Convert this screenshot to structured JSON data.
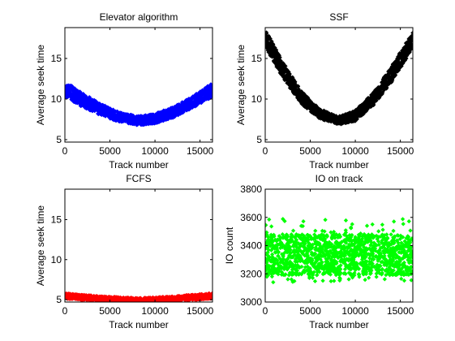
{
  "chart_data": [
    {
      "type": "scatter",
      "title": "Elevator algorithm",
      "xlabel": "Track number",
      "ylabel": "Average seek time",
      "xlim": [
        0,
        16384
      ],
      "ylim": [
        4.7,
        18.8
      ],
      "xticks": [
        0,
        5000,
        10000,
        15000
      ],
      "yticks": [
        5,
        10,
        15
      ],
      "marker": "diamond",
      "color": "#0000ff",
      "grid": false,
      "series": [
        {
          "band_x": [
            0,
            2000,
            4000,
            6000,
            8000,
            8400,
            10000,
            12000,
            14000,
            16384
          ],
          "band_low": [
            10.3,
            9.0,
            8.0,
            7.2,
            6.8,
            6.8,
            7.0,
            7.7,
            8.8,
            10.3
          ],
          "band_high": [
            12.2,
            10.7,
            9.4,
            8.4,
            7.9,
            7.9,
            8.2,
            9.0,
            10.2,
            12.0
          ]
        }
      ]
    },
    {
      "type": "scatter",
      "title": "SSF",
      "xlabel": "Track number",
      "ylabel": "Average seek time",
      "xlim": [
        0,
        16384
      ],
      "ylim": [
        4.7,
        18.8
      ],
      "xticks": [
        0,
        5000,
        10000,
        15000
      ],
      "yticks": [
        5,
        10,
        15
      ],
      "marker": "diamond",
      "color": "#000000",
      "grid": false,
      "series": [
        {
          "band_x": [
            0,
            2000,
            4000,
            6000,
            8000,
            8400,
            10000,
            12000,
            14000,
            16384
          ],
          "band_low": [
            16.5,
            12.5,
            9.4,
            7.6,
            6.9,
            6.9,
            7.3,
            9.2,
            12.0,
            16.3
          ],
          "band_high": [
            18.6,
            14.5,
            11.0,
            8.8,
            7.9,
            7.9,
            8.6,
            10.8,
            14.0,
            18.3
          ]
        }
      ]
    },
    {
      "type": "scatter",
      "title": "FCFS",
      "xlabel": "Track number",
      "ylabel": "Average seek time",
      "xlim": [
        0,
        16384
      ],
      "ylim": [
        4.7,
        18.8
      ],
      "xticks": [
        0,
        5000,
        10000,
        15000
      ],
      "yticks": [
        5,
        10,
        15
      ],
      "marker": "diamond",
      "color": "#ff0000",
      "grid": false,
      "series": [
        {
          "band_x": [
            0,
            4000,
            8000,
            8400,
            12000,
            16384
          ],
          "band_low": [
            5.1,
            4.85,
            4.7,
            4.7,
            4.85,
            5.1
          ],
          "band_high": [
            5.8,
            5.4,
            5.2,
            5.2,
            5.4,
            5.8
          ]
        }
      ]
    },
    {
      "type": "scatter",
      "title": "IO on track",
      "xlabel": "Track number",
      "ylabel": "IO count",
      "xlim": [
        0,
        16384
      ],
      "ylim": [
        3000,
        3800
      ],
      "xticks": [
        0,
        5000,
        10000,
        15000
      ],
      "yticks": [
        3000,
        3200,
        3400,
        3600,
        3800
      ],
      "marker": "diamond",
      "color": "#00ff00",
      "grid": false,
      "series": [
        {
          "band_x": [
            0,
            16384
          ],
          "band_low": [
            3190,
            3190
          ],
          "band_high": [
            3480,
            3480
          ],
          "outlier_range": [
            3140,
            3590
          ]
        }
      ]
    }
  ]
}
